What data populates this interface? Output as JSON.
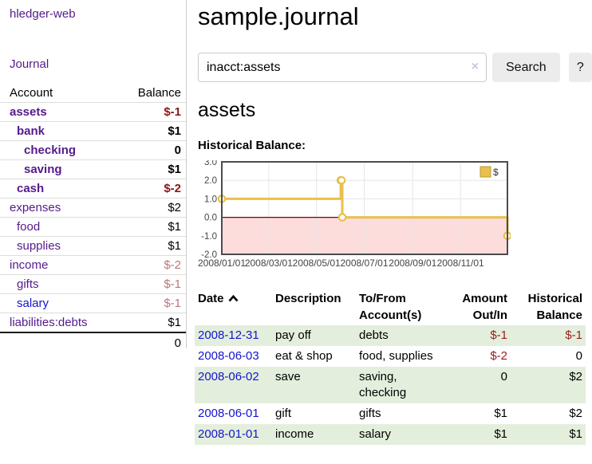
{
  "app": {
    "title": "hledger-web"
  },
  "sidebar": {
    "nav": [
      {
        "label": "Journal"
      }
    ],
    "table": {
      "account_header": "Account",
      "balance_header": "Balance"
    },
    "accounts": [
      {
        "name": "assets",
        "level": 1,
        "bold": true,
        "balance": "$-1",
        "neg": "strong"
      },
      {
        "name": "bank",
        "level": 2,
        "bold": true,
        "balance": "$1"
      },
      {
        "name": "checking",
        "level": 3,
        "bold": true,
        "balance": "0"
      },
      {
        "name": "saving",
        "level": 3,
        "bold": true,
        "balance": "$1"
      },
      {
        "name": "cash",
        "level": 2,
        "bold": true,
        "balance": "$-2",
        "neg": "strong"
      },
      {
        "name": "expenses",
        "level": 1,
        "bold": false,
        "balance": "$2"
      },
      {
        "name": "food",
        "level": 2,
        "bold": false,
        "balance": "$1"
      },
      {
        "name": "supplies",
        "level": 2,
        "bold": false,
        "balance": "$1"
      },
      {
        "name": "income",
        "level": 1,
        "bold": false,
        "balance": "$-2",
        "neg": "faded"
      },
      {
        "name": "gifts",
        "level": 2,
        "bold": false,
        "balance": "$-1",
        "neg": "faded"
      },
      {
        "name": "salary",
        "level": 2,
        "bold": false,
        "balance": "$-1",
        "neg": "faded",
        "link": "blue"
      },
      {
        "name": "liabilities:debts",
        "level": 1,
        "bold": false,
        "balance": "$1"
      }
    ],
    "total": "0"
  },
  "header": {
    "title": "sample.journal"
  },
  "search": {
    "value": "inacct:assets",
    "clear_icon": "×",
    "button": "Search",
    "help_button": "?"
  },
  "main": {
    "account_title": "assets",
    "chart_label": "Historical Balance:"
  },
  "chart_data": {
    "type": "line",
    "step": true,
    "title": "Historical Balance:",
    "series": [
      {
        "name": "$",
        "color": "#e8c04d",
        "points": [
          [
            "2008-01-01",
            1
          ],
          [
            "2008-06-01",
            2
          ],
          [
            "2008-06-02",
            2
          ],
          [
            "2008-06-03",
            0
          ],
          [
            "2008-12-31",
            -1
          ]
        ]
      }
    ],
    "ylim": [
      -2,
      3
    ],
    "yticks": [
      "3.0",
      "2.0",
      "1.0",
      "0.0",
      "-1.0",
      "-2.0"
    ],
    "xrange": [
      "2008-01-01",
      "2008-12-31"
    ],
    "xticks": [
      {
        "date": "2008-01-01",
        "label": "2008/01/01"
      },
      {
        "date": "2008-03-01",
        "label": "2008/03/01"
      },
      {
        "date": "2008-05-01",
        "label": "2008/05/01"
      },
      {
        "date": "2008-07-01",
        "label": "2008/07/01"
      },
      {
        "date": "2008-09-01",
        "label": "2008/09/01"
      },
      {
        "date": "2008-11-01",
        "label": "2008/11/01"
      }
    ],
    "legend": {
      "label": "$",
      "position": "top-right"
    },
    "grid": true,
    "negative_region_color": "#fddcdc",
    "zero_line_color": "#7d0000",
    "grid_color": "#e6e6e6",
    "border_color": "#4c4c4c"
  },
  "register": {
    "headers": {
      "date": "Date",
      "description": "Description",
      "tofrom1": "To/From",
      "tofrom2": "Account(s)",
      "amount1": "Amount",
      "amount2": "Out/In",
      "balance1": "Historical",
      "balance2": "Balance"
    },
    "sort": {
      "column": "date",
      "direction": "asc"
    },
    "rows": [
      {
        "date": "2008-12-31",
        "description": "pay off",
        "accounts": "debts",
        "amount": "$-1",
        "amount_neg": true,
        "balance": "$-1",
        "balance_neg": true
      },
      {
        "date": "2008-06-03",
        "description": "eat & shop",
        "accounts": "food, supplies",
        "amount": "$-2",
        "amount_neg": true,
        "balance": "0",
        "balance_neg": false
      },
      {
        "date": "2008-06-02",
        "description": "save",
        "accounts": "saving, checking",
        "amount": "0",
        "amount_neg": false,
        "balance": "$2",
        "balance_neg": false
      },
      {
        "date": "2008-06-01",
        "description": "gift",
        "accounts": "gifts",
        "amount": "$1",
        "amount_neg": false,
        "balance": "$2",
        "balance_neg": false
      },
      {
        "date": "2008-01-01",
        "description": "income",
        "accounts": "salary",
        "amount": "$1",
        "amount_neg": false,
        "balance": "$1",
        "balance_neg": false
      }
    ]
  },
  "colors": {
    "link_purple": "#551a8b",
    "link_blue": "#1414cd",
    "negative_strong": "#8e1616",
    "negative_faded": "#b9787a",
    "negative_table": "#9b1c1c",
    "row_stripe_green": "#e3efdc",
    "chart_line_gold": "#e8c04d"
  }
}
